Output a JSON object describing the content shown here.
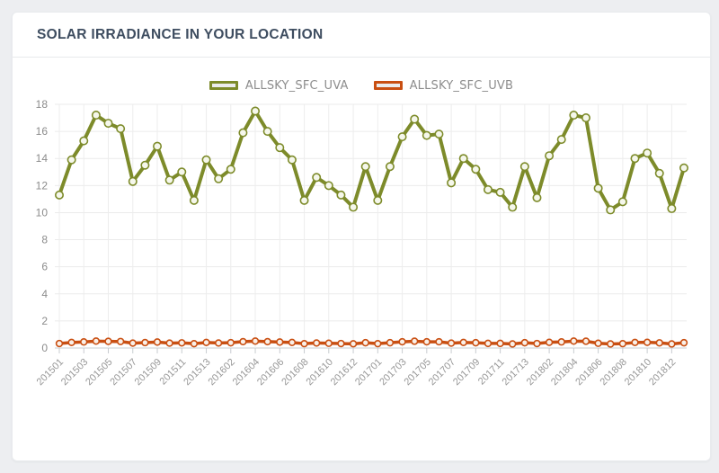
{
  "card": {
    "title": "SOLAR IRRADIANCE IN YOUR LOCATION"
  },
  "colors": {
    "page_background": "#edeef1",
    "card_background": "#ffffff",
    "title_text": "#3e4d60",
    "axis_text": "#979797",
    "gridline": "#ebebeb",
    "axis_line": "#c8ccd0",
    "uva_accent": "#7d8b2a",
    "uvb_accent": "#c94f12"
  },
  "chart_data": {
    "type": "line",
    "title": "",
    "xlabel": "",
    "ylabel": "",
    "ylim": [
      0,
      18
    ],
    "yticks": [
      0,
      2,
      4,
      6,
      8,
      10,
      12,
      14,
      16,
      18
    ],
    "grid": true,
    "legend_position": "top-center",
    "xtick_every": 2,
    "xtick_rotation": -45,
    "categories": [
      "201501",
      "201502",
      "201503",
      "201504",
      "201505",
      "201506",
      "201507",
      "201508",
      "201509",
      "201510",
      "201511",
      "201512",
      "201513",
      "201601",
      "201602",
      "201603",
      "201604",
      "201605",
      "201606",
      "201607",
      "201608",
      "201609",
      "201610",
      "201611",
      "201612",
      "201613",
      "201701",
      "201702",
      "201703",
      "201704",
      "201705",
      "201706",
      "201707",
      "201708",
      "201709",
      "201710",
      "201711",
      "201712",
      "201713",
      "201801",
      "201802",
      "201803",
      "201804",
      "201805",
      "201806",
      "201807",
      "201808",
      "201809",
      "201810",
      "201811",
      "201812",
      "201813"
    ],
    "visible_x_labels": [
      "201501",
      "201503",
      "201505",
      "201507",
      "201509",
      "201511",
      "201513",
      "201602",
      "201604",
      "201606",
      "201608",
      "201610",
      "201612",
      "201701",
      "201703",
      "201705",
      "201707",
      "201709",
      "201711",
      "201713",
      "201802",
      "201804",
      "201806",
      "201808",
      "201810",
      "201812"
    ],
    "series": [
      {
        "name": "ALLSKY_SFC_UVA",
        "color": "#7d8b2a",
        "marker_fill": "#f5f7eb",
        "line_width": 4,
        "values": [
          11.3,
          13.9,
          15.3,
          17.2,
          16.6,
          16.2,
          12.3,
          13.5,
          14.9,
          12.4,
          13.0,
          10.9,
          13.9,
          12.5,
          13.2,
          15.9,
          17.5,
          16.0,
          14.8,
          13.9,
          10.9,
          12.6,
          12.0,
          11.3,
          10.4,
          13.4,
          10.9,
          13.4,
          15.6,
          16.9,
          15.7,
          15.8,
          12.2,
          14.0,
          13.2,
          11.7,
          11.5,
          10.4,
          13.4,
          11.1,
          14.2,
          15.4,
          17.2,
          17.0,
          11.8,
          10.2,
          10.8,
          14.0,
          14.4,
          12.9,
          10.3,
          13.3
        ]
      },
      {
        "name": "ALLSKY_SFC_UVB",
        "color": "#c94f12",
        "marker_fill": "#faf0e8",
        "line_width": 3.5,
        "values": [
          0.33,
          0.41,
          0.45,
          0.51,
          0.49,
          0.48,
          0.36,
          0.4,
          0.44,
          0.36,
          0.38,
          0.32,
          0.41,
          0.37,
          0.39,
          0.47,
          0.51,
          0.47,
          0.44,
          0.41,
          0.32,
          0.37,
          0.35,
          0.33,
          0.31,
          0.39,
          0.32,
          0.39,
          0.46,
          0.5,
          0.46,
          0.46,
          0.36,
          0.41,
          0.39,
          0.34,
          0.34,
          0.3,
          0.39,
          0.33,
          0.42,
          0.45,
          0.51,
          0.5,
          0.35,
          0.3,
          0.32,
          0.41,
          0.42,
          0.38,
          0.3,
          0.39
        ]
      }
    ]
  }
}
